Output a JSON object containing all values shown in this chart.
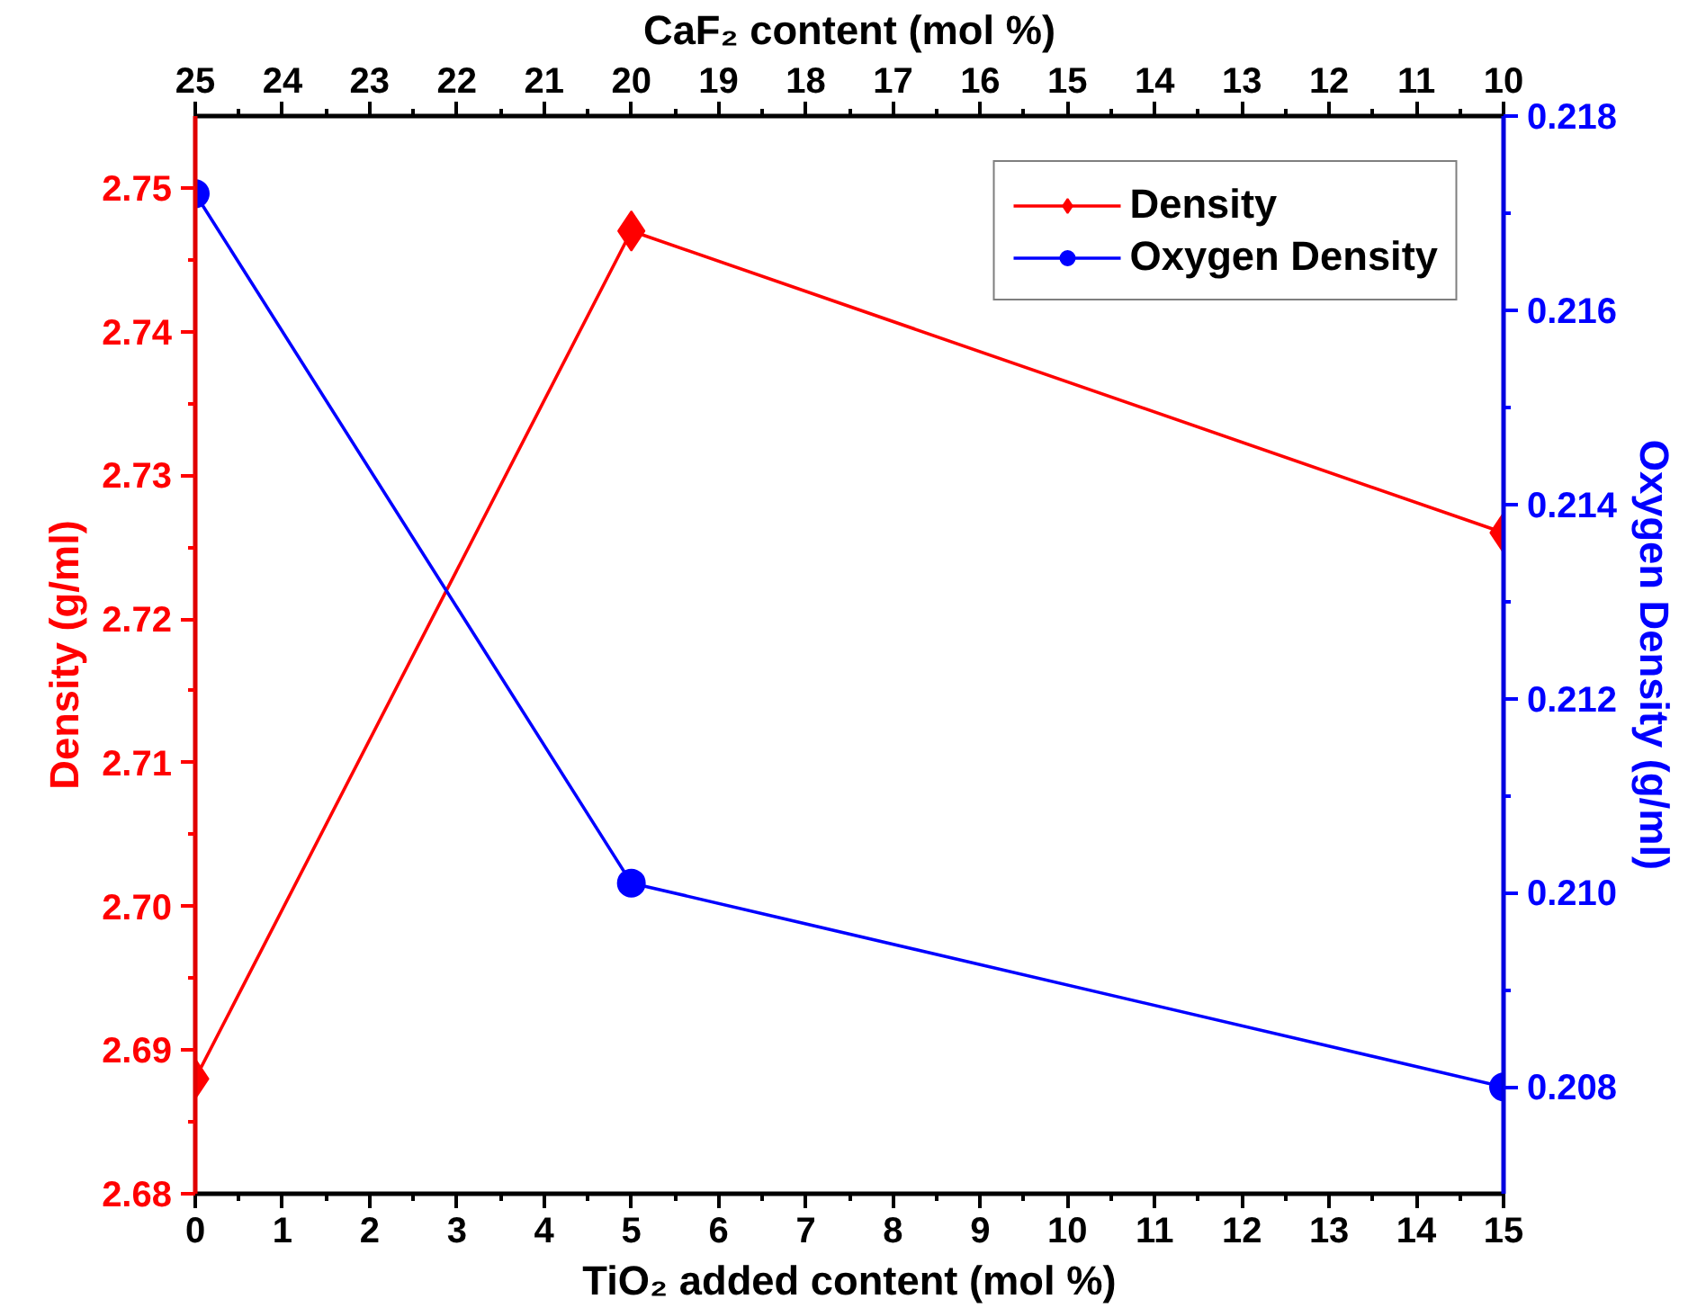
{
  "chart_data": {
    "type": "line",
    "x": [
      0,
      5,
      15
    ],
    "xlabel": "TiO₂ added content (mol %)",
    "ylabel": "Density (g/ml)",
    "y2label": "Oxygen Density (g/ml)",
    "x2label": "CaF₂ content (mol %)",
    "xlim": [
      0,
      15
    ],
    "xticks": [
      0,
      1,
      2,
      3,
      4,
      5,
      6,
      7,
      8,
      9,
      10,
      11,
      12,
      13,
      14,
      15
    ],
    "x2lim": [
      25,
      10
    ],
    "x2ticks": [
      25,
      24,
      23,
      22,
      21,
      20,
      19,
      18,
      17,
      16,
      15,
      14,
      13,
      12,
      11,
      10
    ],
    "ylim": [
      2.68,
      2.755
    ],
    "yticks": [
      {
        "value": 2.68,
        "label": "2.68"
      },
      {
        "value": 2.69,
        "label": "2.69"
      },
      {
        "value": 2.7,
        "label": "2.70"
      },
      {
        "value": 2.71,
        "label": "2.71"
      },
      {
        "value": 2.72,
        "label": "2.72"
      },
      {
        "value": 2.73,
        "label": "2.73"
      },
      {
        "value": 2.74,
        "label": "2.74"
      },
      {
        "value": 2.75,
        "label": "2.75"
      }
    ],
    "y2lim": [
      0.2069,
      0.218
    ],
    "y2ticks": [
      {
        "value": 0.208,
        "label": "0.208"
      },
      {
        "value": 0.21,
        "label": "0.210"
      },
      {
        "value": 0.212,
        "label": "0.212"
      },
      {
        "value": 0.214,
        "label": "0.214"
      },
      {
        "value": 0.216,
        "label": "0.216"
      },
      {
        "value": 0.218,
        "label": "0.218"
      }
    ],
    "series": [
      {
        "name": "Density",
        "color": "#ff0000",
        "values": [
          2.688,
          2.747,
          2.726
        ],
        "marker": "diamond"
      },
      {
        "name": "Oxygen Density",
        "color": "#0000ff",
        "values": [
          0.2172,
          0.2101,
          0.208
        ],
        "marker": "circle",
        "axis": "y2"
      }
    ],
    "legend": "top right",
    "grid": false,
    "line_style": "solid"
  }
}
